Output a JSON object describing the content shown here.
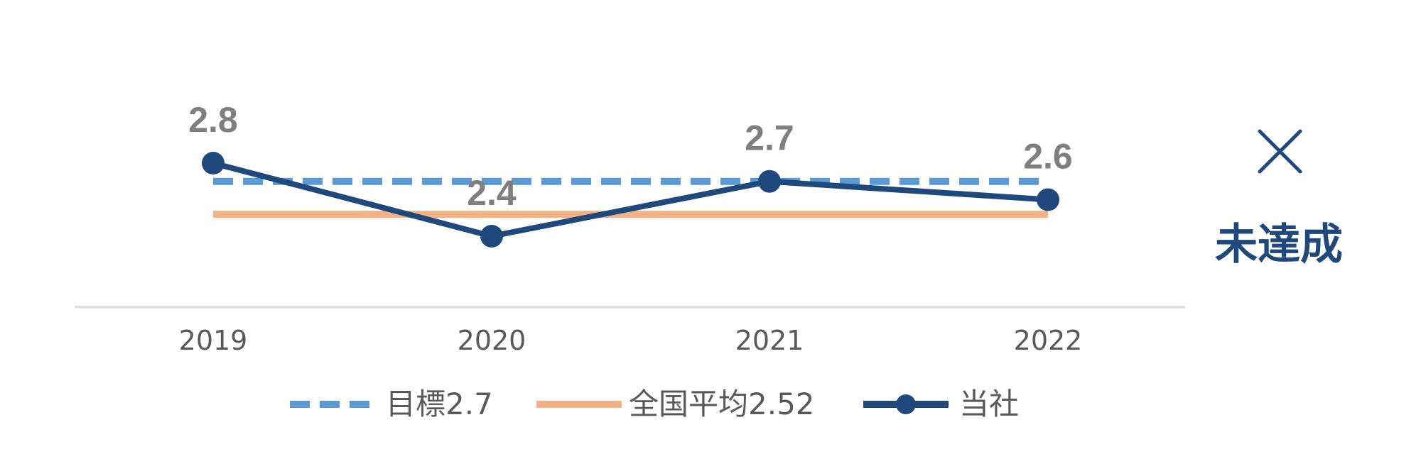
{
  "chart_data": {
    "type": "line",
    "categories": [
      "2019",
      "2020",
      "2021",
      "2022"
    ],
    "series": [
      {
        "name": "目標2.7",
        "values": [
          2.7,
          2.7,
          2.7,
          2.7
        ],
        "color": "#5b9bd5",
        "style": "dashed"
      },
      {
        "name": "全国平均2.52",
        "values": [
          2.52,
          2.52,
          2.52,
          2.52
        ],
        "color": "#f4b183",
        "style": "solid"
      },
      {
        "name": "当社",
        "values": [
          2.8,
          2.4,
          2.7,
          2.6
        ],
        "color": "#1f497d",
        "style": "solid-markers"
      }
    ],
    "data_labels": [
      "2.8",
      "2.4",
      "2.7",
      "2.6"
    ],
    "legend_position": "bottom",
    "grid": false
  },
  "status": {
    "mark": "×",
    "label": "未達成",
    "color": "#1f497d"
  }
}
